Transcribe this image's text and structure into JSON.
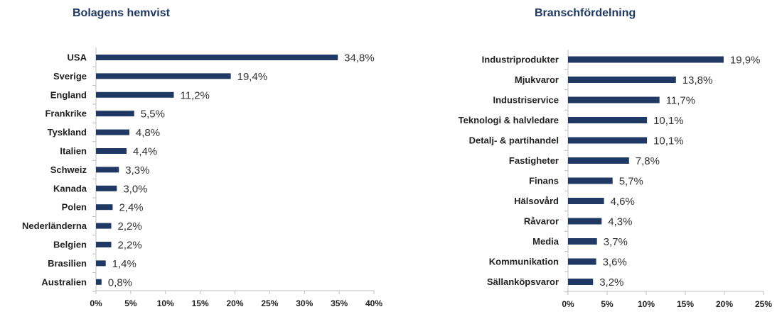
{
  "colors": {
    "bar": "#1f3864",
    "axis": "#bfbfbf",
    "title": "#1f3864"
  },
  "chart_data": [
    {
      "type": "bar",
      "orientation": "horizontal",
      "title": "Bolagens hemvist",
      "categories": [
        "USA",
        "Sverige",
        "England",
        "Frankrike",
        "Tyskland",
        "Italien",
        "Schweiz",
        "Kanada",
        "Polen",
        "Nederländerna",
        "Belgien",
        "Brasilien",
        "Australien"
      ],
      "values": [
        34.8,
        19.4,
        11.2,
        5.5,
        4.8,
        4.4,
        3.3,
        3.0,
        2.4,
        2.2,
        2.2,
        1.4,
        0.8
      ],
      "value_labels": [
        "34,8%",
        "19,4%",
        "11,2%",
        "5,5%",
        "4,8%",
        "4,4%",
        "3,3%",
        "3,0%",
        "2,4%",
        "2,2%",
        "2,2%",
        "1,4%",
        "0,8%"
      ],
      "xlim": [
        0,
        40
      ],
      "xticks": [
        "0%",
        "5%",
        "10%",
        "15%",
        "20%",
        "25%",
        "30%",
        "35%",
        "40%"
      ],
      "grid": false
    },
    {
      "type": "bar",
      "orientation": "horizontal",
      "title": "Branschfördelning",
      "categories": [
        "Industriprodukter",
        "Mjukvaror",
        "Industriservice",
        "Teknologi & halvledare",
        "Detalj- & partihandel",
        "Fastigheter",
        "Finans",
        "Hälsovård",
        "Råvaror",
        "Media",
        "Kommunikation",
        "Sällanköpsvaror"
      ],
      "values": [
        19.9,
        13.8,
        11.7,
        10.1,
        10.1,
        7.8,
        5.7,
        4.6,
        4.3,
        3.7,
        3.6,
        3.2
      ],
      "value_labels": [
        "19,9%",
        "13,8%",
        "11,7%",
        "10,1%",
        "10,1%",
        "7,8%",
        "5,7%",
        "4,6%",
        "4,3%",
        "3,7%",
        "3,6%",
        "3,2%"
      ],
      "xlim": [
        0,
        25
      ],
      "xticks": [
        "0%",
        "5%",
        "10%",
        "15%",
        "20%",
        "25%"
      ],
      "grid": false
    }
  ]
}
